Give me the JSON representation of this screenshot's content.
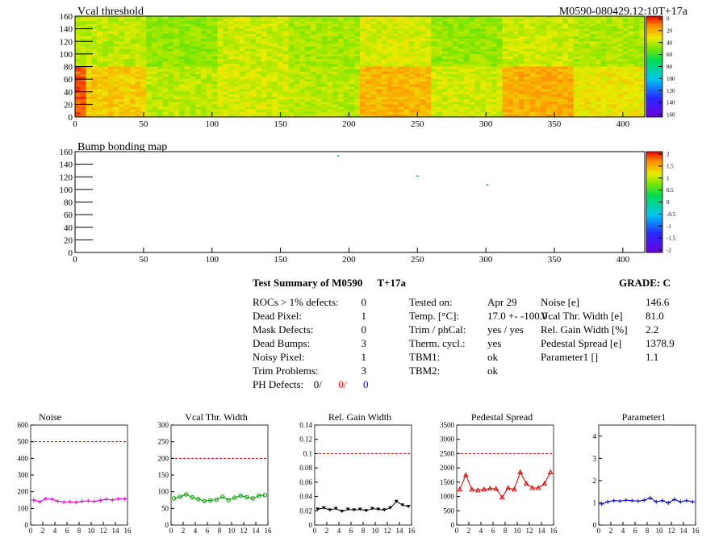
{
  "vcal_map": {
    "title": "Vcal threshold",
    "module_label": "M0590-080429.12:10T+17a",
    "xlim": [
      0,
      416
    ],
    "ylim": [
      0,
      160
    ],
    "xticks": [
      0,
      50,
      100,
      150,
      200,
      250,
      300,
      350,
      400
    ],
    "yticks": [
      0,
      20,
      40,
      60,
      80,
      100,
      120,
      140,
      160
    ],
    "palette_ticks": [
      "0",
      "20",
      "40",
      "60",
      "80",
      "100",
      "120",
      "140",
      "160"
    ],
    "roc_means": {
      "top": [
        118,
        112,
        120,
        115,
        122,
        113,
        120,
        116
      ],
      "bottom": [
        132,
        118,
        121,
        117,
        136,
        121,
        138,
        126
      ]
    },
    "hot_edge": true
  },
  "bump_map": {
    "title": "Bump bonding map",
    "xlim": [
      0,
      416
    ],
    "ylim": [
      0,
      160
    ],
    "xticks": [
      0,
      50,
      100,
      150,
      200,
      250,
      300,
      350,
      400
    ],
    "yticks": [
      0,
      20,
      40,
      60,
      80,
      100,
      120,
      140,
      160
    ],
    "palette_ticks": [
      "2",
      "1.5",
      "1",
      "0.5",
      "0",
      "-0.5",
      "-1",
      "-1.5",
      "-2"
    ],
    "defects": [
      {
        "x": 192,
        "y": 153,
        "color": "#22aa44"
      },
      {
        "x": 250,
        "y": 121,
        "color": "#22aa44"
      },
      {
        "x": 301,
        "y": 107,
        "color": "#22aa44"
      }
    ]
  },
  "summary": {
    "title": "Test Summary of M0590",
    "tag": "T+17a",
    "grade_label": "GRADE:  C",
    "col1": [
      {
        "label": "ROCs > 1% defects:",
        "value": "0"
      },
      {
        "label": "Dead Pixel:",
        "value": "1"
      },
      {
        "label": "Mask Defects:",
        "value": "0"
      },
      {
        "label": "Dead Bumps:",
        "value": "3"
      },
      {
        "label": "Noisy Pixel:",
        "value": "1"
      },
      {
        "label": "Trim Problems:",
        "value": "3"
      }
    ],
    "ph_defects": {
      "label": "PH Defects:",
      "v1": "0/",
      "v2": "0/",
      "v3": "0"
    },
    "col2": [
      {
        "label": "Tested on:",
        "value": "Apr 29"
      },
      {
        "label": "Temp. [°C]:",
        "value": "17.0 +- -100.0"
      },
      {
        "label": "Trim / phCal:",
        "value": "yes / yes"
      },
      {
        "label": "Therm. cycl.:",
        "value": "yes"
      },
      {
        "label": "TBM1:",
        "value": "ok"
      },
      {
        "label": "TBM2:",
        "value": "ok"
      }
    ],
    "col3": [
      {
        "label": "Noise [e]",
        "value": "146.6"
      },
      {
        "label": "Vcal Thr. Width [e]",
        "value": "81.0"
      },
      {
        "label": "Rel. Gain Width [%]",
        "value": "2.2"
      },
      {
        "label": "Pedestal Spread [e]",
        "value": "1378.9"
      },
      {
        "label": "Parameter1 []",
        "value": "1.1"
      }
    ]
  },
  "chart_data": [
    {
      "type": "line",
      "title": "Noise",
      "x": [
        0,
        1,
        2,
        3,
        4,
        5,
        6,
        7,
        8,
        9,
        10,
        11,
        12,
        13,
        14,
        15
      ],
      "values": [
        150,
        140,
        158,
        155,
        143,
        138,
        140,
        137,
        143,
        145,
        142,
        148,
        155,
        150,
        158,
        157
      ],
      "ylim": [
        0,
        600
      ],
      "yticks": [
        "0",
        "100",
        "200",
        "300",
        "400",
        "500",
        "600"
      ],
      "xticks": [
        "0",
        "2",
        "4",
        "6",
        "8",
        "10",
        "12",
        "14",
        "16"
      ],
      "limit": 500,
      "color": "#cc00cc",
      "marker": "cross"
    },
    {
      "type": "line",
      "title": "Vcal Thr. Width",
      "x": [
        0,
        1,
        2,
        3,
        4,
        5,
        6,
        7,
        8,
        9,
        10,
        11,
        12,
        13,
        14,
        15
      ],
      "values": [
        80,
        85,
        92,
        83,
        78,
        72,
        74,
        76,
        85,
        75,
        82,
        88,
        84,
        80,
        88,
        90
      ],
      "ylim": [
        0,
        300
      ],
      "yticks": [
        "0",
        "50",
        "100",
        "150",
        "200",
        "250",
        "300"
      ],
      "xticks": [
        "0",
        "2",
        "4",
        "6",
        "8",
        "10",
        "12",
        "14",
        "16"
      ],
      "limit": 200,
      "color": "#009900",
      "marker": "circle"
    },
    {
      "type": "line",
      "title": "Rel. Gain Width",
      "x": [
        0,
        1,
        2,
        3,
        4,
        5,
        6,
        7,
        8,
        9,
        10,
        11,
        12,
        13,
        14,
        15
      ],
      "values": [
        0.022,
        0.024,
        0.021,
        0.023,
        0.019,
        0.022,
        0.021,
        0.022,
        0.02,
        0.023,
        0.022,
        0.021,
        0.024,
        0.033,
        0.028,
        0.026
      ],
      "ylim": [
        0,
        0.14
      ],
      "yticks": [
        "0",
        "0.02",
        "0.04",
        "0.06",
        "0.08",
        "0.1",
        "0.12",
        "0.14"
      ],
      "xticks": [
        "0",
        "2",
        "4",
        "6",
        "8",
        "10",
        "12",
        "14",
        "16"
      ],
      "limit": 0.1,
      "color": "#000000",
      "marker": "triangle"
    },
    {
      "type": "line",
      "title": "Pedestal Spread",
      "x": [
        0,
        1,
        2,
        3,
        4,
        5,
        6,
        7,
        8,
        9,
        10,
        11,
        12,
        13,
        14,
        15
      ],
      "values": [
        1250,
        1750,
        1250,
        1220,
        1250,
        1280,
        1270,
        970,
        1300,
        1250,
        1850,
        1450,
        1300,
        1300,
        1450,
        1850
      ],
      "ylim": [
        0,
        3500
      ],
      "yticks": [
        "0",
        "500",
        "1000",
        "1500",
        "2000",
        "2500",
        "3000",
        "3500"
      ],
      "xticks": [
        "0",
        "2",
        "4",
        "6",
        "8",
        "10",
        "12",
        "14",
        "16"
      ],
      "limit": 2500,
      "color": "#dd0000",
      "marker": "triangle-open"
    },
    {
      "type": "line",
      "title": "Parameter1",
      "x": [
        0,
        1,
        2,
        3,
        4,
        5,
        6,
        7,
        8,
        9,
        10,
        11,
        12,
        13,
        14,
        15
      ],
      "values": [
        0.95,
        1.05,
        1.1,
        1.08,
        1.12,
        1.1,
        1.08,
        1.12,
        1.22,
        1.05,
        1.1,
        1.0,
        1.15,
        1.05,
        1.1,
        1.05
      ],
      "ylim": [
        0,
        4.5
      ],
      "yticks": [
        "0",
        "1",
        "2",
        "3",
        "4"
      ],
      "xticks": [
        "0",
        "2",
        "4",
        "6",
        "8",
        "10",
        "12",
        "14",
        "16"
      ],
      "limit": null,
      "color": "#0000cc",
      "marker": "cross"
    }
  ]
}
